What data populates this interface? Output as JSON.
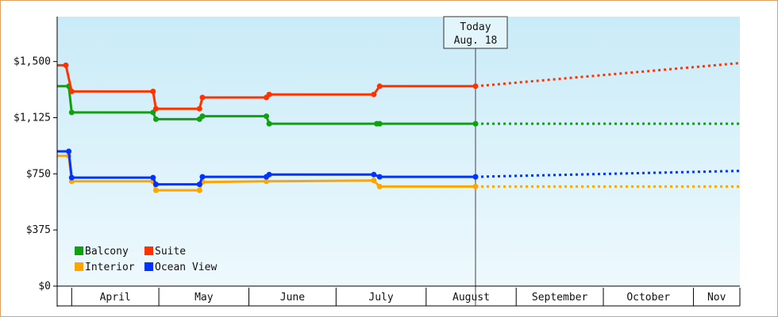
{
  "chart_data": {
    "type": "line",
    "title": "",
    "xlabel": "",
    "ylabel": "",
    "y_ticks": [
      "$0",
      "$375",
      "$750",
      "$1,125",
      "$1,500"
    ],
    "y_tick_values": [
      0,
      375,
      750,
      1125,
      1500
    ],
    "ylim": [
      0,
      1800
    ],
    "x_axis_type": "date",
    "xlim": [
      "2024-03-27",
      "2024-11-17"
    ],
    "months": [
      {
        "label": "April",
        "start": "2024-04-01",
        "end": "2024-05-01"
      },
      {
        "label": "May",
        "start": "2024-05-01",
        "end": "2024-06-01"
      },
      {
        "label": "June",
        "start": "2024-06-01",
        "end": "2024-07-01"
      },
      {
        "label": "July",
        "start": "2024-07-01",
        "end": "2024-08-01"
      },
      {
        "label": "August",
        "start": "2024-08-01",
        "end": "2024-09-01"
      },
      {
        "label": "September",
        "start": "2024-09-01",
        "end": "2024-10-01"
      },
      {
        "label": "October",
        "start": "2024-10-01",
        "end": "2024-11-01"
      },
      {
        "label": "Nov",
        "start": "2024-11-01",
        "end": "2024-11-17"
      }
    ],
    "today": {
      "label_line1": "Today",
      "label_line2": "Aug. 18",
      "date": "2024-08-18"
    },
    "legend": {
      "placement": "bottom-left"
    },
    "grid": false,
    "series": [
      {
        "name": "Balcony",
        "color": "#11a011",
        "points": [
          [
            "2024-03-27",
            1335
          ],
          [
            "2024-03-31",
            1335
          ],
          [
            "2024-04-01",
            1160
          ],
          [
            "2024-04-29",
            1160
          ],
          [
            "2024-04-30",
            1115
          ],
          [
            "2024-05-15",
            1115
          ],
          [
            "2024-05-16",
            1135
          ],
          [
            "2024-06-07",
            1135
          ],
          [
            "2024-06-08",
            1085
          ],
          [
            "2024-07-15",
            1085
          ],
          [
            "2024-07-16",
            1085
          ],
          [
            "2024-08-18",
            1085
          ]
        ],
        "projection": [
          [
            "2024-08-18",
            1085
          ],
          [
            "2024-11-17",
            1085
          ]
        ]
      },
      {
        "name": "Suite",
        "color": "#ff3300",
        "points": [
          [
            "2024-03-27",
            1475
          ],
          [
            "2024-03-30",
            1475
          ],
          [
            "2024-04-01",
            1300
          ],
          [
            "2024-04-29",
            1300
          ],
          [
            "2024-04-30",
            1185
          ],
          [
            "2024-05-15",
            1185
          ],
          [
            "2024-05-16",
            1260
          ],
          [
            "2024-06-07",
            1260
          ],
          [
            "2024-06-08",
            1280
          ],
          [
            "2024-07-14",
            1280
          ],
          [
            "2024-07-16",
            1335
          ],
          [
            "2024-08-18",
            1335
          ]
        ],
        "projection": [
          [
            "2024-08-18",
            1335
          ],
          [
            "2024-11-17",
            1490
          ]
        ]
      },
      {
        "name": "Interior",
        "color": "#ffa500",
        "points": [
          [
            "2024-03-27",
            870
          ],
          [
            "2024-03-31",
            870
          ],
          [
            "2024-04-01",
            700
          ],
          [
            "2024-04-29",
            700
          ],
          [
            "2024-04-30",
            640
          ],
          [
            "2024-05-15",
            640
          ],
          [
            "2024-05-16",
            695
          ],
          [
            "2024-06-07",
            700
          ],
          [
            "2024-07-14",
            705
          ],
          [
            "2024-07-16",
            665
          ],
          [
            "2024-08-18",
            665
          ]
        ],
        "projection": [
          [
            "2024-08-18",
            665
          ],
          [
            "2024-11-17",
            665
          ]
        ]
      },
      {
        "name": "Ocean View",
        "color": "#0033ff",
        "points": [
          [
            "2024-03-27",
            900
          ],
          [
            "2024-03-31",
            900
          ],
          [
            "2024-04-01",
            725
          ],
          [
            "2024-04-29",
            725
          ],
          [
            "2024-04-30",
            680
          ],
          [
            "2024-05-15",
            680
          ],
          [
            "2024-05-16",
            730
          ],
          [
            "2024-06-07",
            730
          ],
          [
            "2024-06-08",
            745
          ],
          [
            "2024-07-14",
            745
          ],
          [
            "2024-07-16",
            730
          ],
          [
            "2024-08-18",
            730
          ]
        ],
        "projection": [
          [
            "2024-08-18",
            730
          ],
          [
            "2024-11-17",
            770
          ]
        ]
      }
    ]
  }
}
